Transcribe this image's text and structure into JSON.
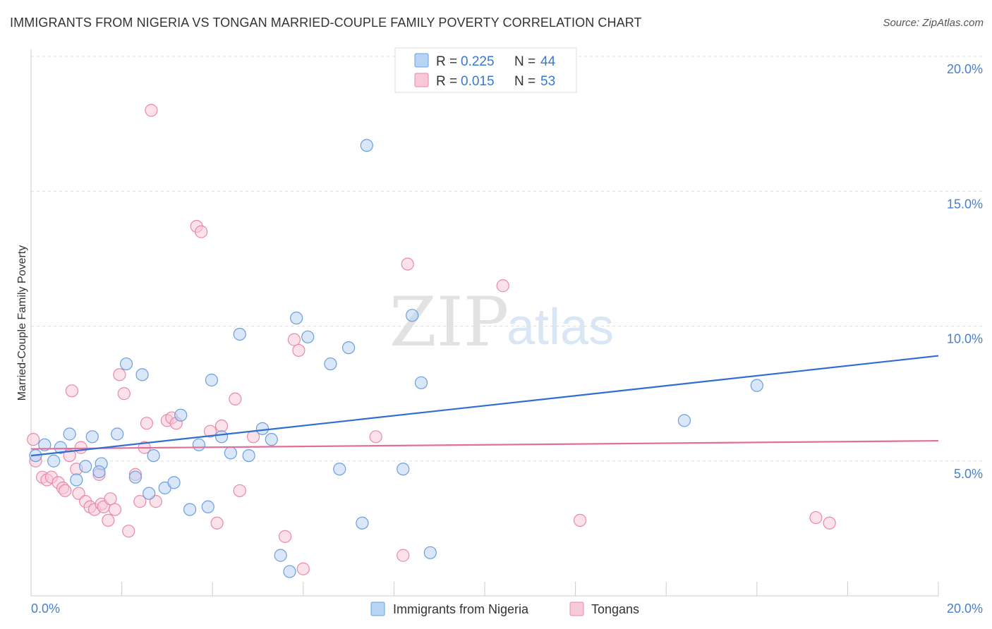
{
  "header": {
    "title": "IMMIGRANTS FROM NIGERIA VS TONGAN MARRIED-COUPLE FAMILY POVERTY CORRELATION CHART",
    "source": "Source: ZipAtlas.com"
  },
  "watermark": {
    "zip": "ZIP",
    "atlas": "atlas"
  },
  "colors": {
    "nigeria": "#6a9fdf",
    "nigeria_fill": "#b9d3f3",
    "nigeria_line": "#2f6fd0",
    "tongan": "#e88aa8",
    "tongan_fill": "#f7c9d7",
    "tongan_line": "#e0709a",
    "grid": "#dddddd",
    "tick_text": "#4a7fc9"
  },
  "legend": {
    "items": [
      {
        "r_label": "R =",
        "r_value": "0.225",
        "n_label": "N =",
        "n_value": "44"
      },
      {
        "r_label": "R =",
        "r_value": "0.015",
        "n_label": "N =",
        "n_value": "53"
      }
    ]
  },
  "bottom_legend": {
    "items": [
      {
        "label": "Immigrants from Nigeria"
      },
      {
        "label": "Tongans"
      }
    ]
  },
  "chart_data": {
    "type": "scatter",
    "title": "IMMIGRANTS FROM NIGERIA VS TONGAN MARRIED-COUPLE FAMILY POVERTY CORRELATION CHART",
    "xlabel": "",
    "ylabel": "Married-Couple Family Poverty",
    "xlim": [
      0,
      20
    ],
    "ylim": [
      0,
      20
    ],
    "x_tick_labels": [
      "0.0%",
      "20.0%"
    ],
    "y_tick_labels": [
      "5.0%",
      "10.0%",
      "15.0%",
      "20.0%"
    ],
    "y_ticks": [
      5,
      10,
      15,
      20
    ],
    "grid": true,
    "legend_position": "top-center",
    "series": [
      {
        "name": "Immigrants from Nigeria",
        "r": 0.225,
        "n": 44,
        "trend": {
          "x": [
            0,
            20
          ],
          "y": [
            5.2,
            8.9
          ]
        },
        "points": [
          [
            0.1,
            5.2
          ],
          [
            0.3,
            5.6
          ],
          [
            0.5,
            5.0
          ],
          [
            0.65,
            5.5
          ],
          [
            0.85,
            6.0
          ],
          [
            1.0,
            4.3
          ],
          [
            1.2,
            4.8
          ],
          [
            1.35,
            5.9
          ],
          [
            1.55,
            4.9
          ],
          [
            1.5,
            4.6
          ],
          [
            1.9,
            6.0
          ],
          [
            2.1,
            8.6
          ],
          [
            2.3,
            4.4
          ],
          [
            2.45,
            8.2
          ],
          [
            2.6,
            3.8
          ],
          [
            2.7,
            5.2
          ],
          [
            2.95,
            4.0
          ],
          [
            3.15,
            4.2
          ],
          [
            3.3,
            6.7
          ],
          [
            3.5,
            3.2
          ],
          [
            3.7,
            5.6
          ],
          [
            3.9,
            3.3
          ],
          [
            3.98,
            8.0
          ],
          [
            4.2,
            5.9
          ],
          [
            4.4,
            5.3
          ],
          [
            4.6,
            9.7
          ],
          [
            4.8,
            5.2
          ],
          [
            5.1,
            6.2
          ],
          [
            5.3,
            5.8
          ],
          [
            5.5,
            1.5
          ],
          [
            5.7,
            0.9
          ],
          [
            5.85,
            10.3
          ],
          [
            6.1,
            9.6
          ],
          [
            6.6,
            8.6
          ],
          [
            6.8,
            4.7
          ],
          [
            7.0,
            9.2
          ],
          [
            7.3,
            2.7
          ],
          [
            7.4,
            16.7
          ],
          [
            8.2,
            4.7
          ],
          [
            8.4,
            10.4
          ],
          [
            8.6,
            7.9
          ],
          [
            8.8,
            1.6
          ],
          [
            14.4,
            6.5
          ],
          [
            16.0,
            7.8
          ]
        ]
      },
      {
        "name": "Tongans",
        "r": 0.015,
        "n": 53,
        "trend": {
          "x": [
            0,
            20
          ],
          "y": [
            5.45,
            5.75
          ]
        },
        "points": [
          [
            0.05,
            5.8
          ],
          [
            0.1,
            5.0
          ],
          [
            0.25,
            4.4
          ],
          [
            0.35,
            4.3
          ],
          [
            0.45,
            4.4
          ],
          [
            0.6,
            4.2
          ],
          [
            0.7,
            4.0
          ],
          [
            0.75,
            3.9
          ],
          [
            0.85,
            5.2
          ],
          [
            0.9,
            7.6
          ],
          [
            1.0,
            4.7
          ],
          [
            1.05,
            3.8
          ],
          [
            1.1,
            5.5
          ],
          [
            1.2,
            3.5
          ],
          [
            1.3,
            3.3
          ],
          [
            1.4,
            3.2
          ],
          [
            1.5,
            4.5
          ],
          [
            1.55,
            3.4
          ],
          [
            1.6,
            3.3
          ],
          [
            1.7,
            2.8
          ],
          [
            1.75,
            3.6
          ],
          [
            1.85,
            3.2
          ],
          [
            1.95,
            8.2
          ],
          [
            2.05,
            7.5
          ],
          [
            2.15,
            2.4
          ],
          [
            2.3,
            4.5
          ],
          [
            2.4,
            3.5
          ],
          [
            2.5,
            5.5
          ],
          [
            2.55,
            6.4
          ],
          [
            2.65,
            18.0
          ],
          [
            2.75,
            3.5
          ],
          [
            3.0,
            6.5
          ],
          [
            3.1,
            6.6
          ],
          [
            3.2,
            6.4
          ],
          [
            3.65,
            13.7
          ],
          [
            3.75,
            13.5
          ],
          [
            3.95,
            6.1
          ],
          [
            4.1,
            2.7
          ],
          [
            4.2,
            6.3
          ],
          [
            4.5,
            7.3
          ],
          [
            4.6,
            3.9
          ],
          [
            4.9,
            5.9
          ],
          [
            5.6,
            2.2
          ],
          [
            5.8,
            9.5
          ],
          [
            5.9,
            9.1
          ],
          [
            6.0,
            1.0
          ],
          [
            7.6,
            5.9
          ],
          [
            8.2,
            1.5
          ],
          [
            8.3,
            12.3
          ],
          [
            10.4,
            11.5
          ],
          [
            12.1,
            2.8
          ],
          [
            17.3,
            2.9
          ],
          [
            17.6,
            2.7
          ]
        ]
      }
    ]
  }
}
